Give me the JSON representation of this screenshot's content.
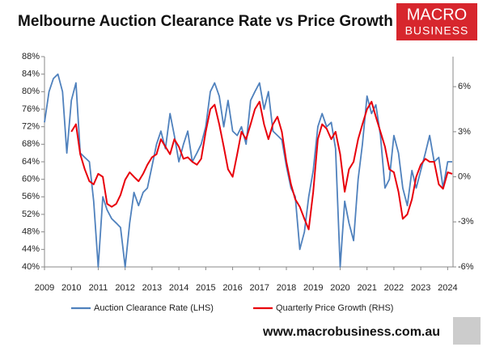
{
  "chart_data": {
    "type": "line",
    "title": "Melbourne Auction Clearance Rate vs Price Growth",
    "logo": [
      "MACRO",
      "BUSINESS"
    ],
    "footer": "www.macrobusiness.com.au",
    "x": [
      2009,
      2009.17,
      2009.33,
      2009.5,
      2009.67,
      2009.83,
      2010,
      2010.17,
      2010.33,
      2010.5,
      2010.67,
      2010.83,
      2011,
      2011.17,
      2011.33,
      2011.5,
      2011.67,
      2011.83,
      2012,
      2012.17,
      2012.33,
      2012.5,
      2012.67,
      2012.83,
      2013,
      2013.17,
      2013.33,
      2013.5,
      2013.67,
      2013.83,
      2014,
      2014.17,
      2014.33,
      2014.5,
      2014.67,
      2014.83,
      2015,
      2015.17,
      2015.33,
      2015.5,
      2015.67,
      2015.83,
      2016,
      2016.17,
      2016.33,
      2016.5,
      2016.67,
      2016.83,
      2017,
      2017.17,
      2017.33,
      2017.5,
      2017.67,
      2017.83,
      2018,
      2018.17,
      2018.33,
      2018.5,
      2018.67,
      2018.83,
      2019,
      2019.17,
      2019.33,
      2019.5,
      2019.67,
      2019.83,
      2020,
      2020.17,
      2020.33,
      2020.5,
      2020.67,
      2020.83,
      2021,
      2021.17,
      2021.33,
      2021.5,
      2021.67,
      2021.83,
      2022,
      2022.17,
      2022.33,
      2022.5,
      2022.67,
      2022.83,
      2023,
      2023.17,
      2023.33,
      2023.5,
      2023.67,
      2023.83,
      2024,
      2024.17
    ],
    "series": [
      {
        "name": "Auction Clearance Rate (LHS)",
        "color": "#4f81bd",
        "axis": "y",
        "values": [
          73,
          80,
          83,
          84,
          80,
          66,
          78,
          82,
          66,
          65,
          64,
          55,
          40,
          56,
          53,
          51,
          50,
          49,
          40,
          50,
          57,
          54,
          57,
          58,
          63,
          68,
          71,
          67,
          75,
          70,
          64,
          68,
          71,
          64,
          66,
          68,
          72,
          80,
          82,
          79,
          72,
          78,
          71,
          70,
          72,
          68,
          78,
          80,
          82,
          76,
          80,
          71,
          70,
          69,
          63,
          58,
          56,
          44,
          48,
          56,
          62,
          72,
          75,
          72,
          73,
          67,
          40,
          55,
          50,
          46,
          60,
          68,
          79,
          75,
          77,
          70,
          58,
          60,
          70,
          66,
          58,
          54,
          62,
          58,
          62,
          66,
          70,
          64,
          65,
          58,
          64,
          64
        ]
      },
      {
        "name": "Quarterly Price Growth (RHS)",
        "color": "#e8000b",
        "axis": "y2",
        "values": [
          null,
          null,
          null,
          null,
          null,
          null,
          3.0,
          3.5,
          1.5,
          0.5,
          -0.3,
          -0.5,
          0.2,
          0,
          -1.8,
          -2,
          -1.8,
          -1.2,
          -0.2,
          0.3,
          0,
          -0.3,
          0.2,
          0.8,
          1.3,
          1.5,
          2.5,
          2.0,
          1.5,
          2.5,
          2.0,
          1.2,
          1.3,
          1.0,
          0.8,
          1.2,
          3.0,
          4.5,
          4.8,
          3.5,
          2.0,
          0.5,
          0,
          1.5,
          3.0,
          2.5,
          3.5,
          4.5,
          5.0,
          3.5,
          2.5,
          3.5,
          4.0,
          3.0,
          1.0,
          -0.5,
          -1.5,
          -2.0,
          -2.8,
          -3.5,
          -1.0,
          2.5,
          3.5,
          3.2,
          2.5,
          3.0,
          1.5,
          -1.0,
          0.5,
          1.0,
          2.5,
          3.5,
          4.5,
          5.0,
          4.0,
          3.0,
          2.0,
          0.5,
          0.3,
          -1.0,
          -2.8,
          -2.5,
          -1.5,
          0,
          0.8,
          1.2,
          1.0,
          1.0,
          -0.5,
          -0.8,
          0.3,
          0.2
        ]
      }
    ],
    "xlim": [
      2009,
      2024.2
    ],
    "xticks": [
      2009,
      2010,
      2011,
      2012,
      2013,
      2014,
      2015,
      2016,
      2017,
      2018,
      2019,
      2020,
      2021,
      2022,
      2023,
      2024
    ],
    "ylim": [
      40,
      88
    ],
    "yticks": [
      {
        "value": 40,
        "label": "40%"
      },
      {
        "value": 44,
        "label": "44%"
      },
      {
        "value": 48,
        "label": "48%"
      },
      {
        "value": 52,
        "label": "52%"
      },
      {
        "value": 56,
        "label": "56%"
      },
      {
        "value": 60,
        "label": "60%"
      },
      {
        "value": 64,
        "label": "64%"
      },
      {
        "value": 68,
        "label": "68%"
      },
      {
        "value": 72,
        "label": "72%"
      },
      {
        "value": 76,
        "label": "76%"
      },
      {
        "value": 80,
        "label": "80%"
      },
      {
        "value": 84,
        "label": "84%"
      },
      {
        "value": 88,
        "label": "88%"
      }
    ],
    "y2lim": [
      -6,
      8
    ],
    "y2ticks": [
      {
        "value": -6,
        "label": "-6%"
      },
      {
        "value": -3,
        "label": "-3%"
      },
      {
        "value": 0,
        "label": "0%"
      },
      {
        "value": 3,
        "label": "3%"
      },
      {
        "value": 6,
        "label": "6%"
      }
    ],
    "grid": false
  }
}
